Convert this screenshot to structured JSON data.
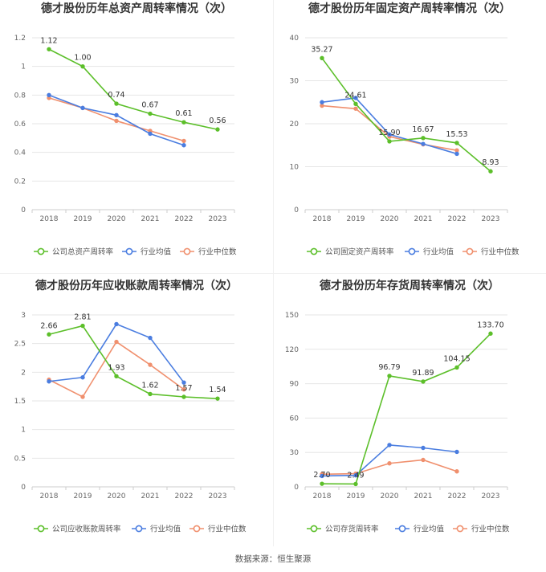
{
  "source": "数据来源：恒生聚源",
  "colors": {
    "company": "#5cbf2a",
    "industry_avg": "#4a7de0",
    "industry_median": "#f0906e"
  },
  "chart_data": [
    {
      "type": "line",
      "title": "德才股份历年总资产周转率情况（次）",
      "categories": [
        "2018",
        "2019",
        "2020",
        "2021",
        "2022",
        "2023"
      ],
      "ylim": [
        0,
        1.2
      ],
      "yticks": [
        0,
        0.2,
        0.4,
        0.6,
        0.8,
        1,
        1.2
      ],
      "ytick_labels": [
        "0",
        "0.2",
        "0.4",
        "0.6",
        "0.8",
        "1",
        "1.2"
      ],
      "label_above": [
        true,
        true,
        true,
        true,
        true,
        true
      ],
      "legend": "bottom",
      "series": [
        {
          "name": "公司总资产周转率",
          "values": [
            1.12,
            1.0,
            0.74,
            0.67,
            0.61,
            0.56
          ],
          "labels": [
            "1.12",
            "1.00",
            "0.74",
            "0.67",
            "0.61",
            "0.56"
          ]
        },
        {
          "name": "行业均值",
          "values": [
            0.8,
            0.71,
            0.66,
            0.53,
            0.45,
            null
          ]
        },
        {
          "name": "行业中位数",
          "values": [
            0.78,
            0.71,
            0.62,
            0.55,
            0.48,
            null
          ]
        }
      ]
    },
    {
      "type": "line",
      "title": "德才股份历年固定资产周转率情况（次）",
      "categories": [
        "2018",
        "2019",
        "2020",
        "2021",
        "2022",
        "2023"
      ],
      "ylim": [
        0,
        40
      ],
      "yticks": [
        0,
        10,
        20,
        30,
        40
      ],
      "ytick_labels": [
        "0",
        "10",
        "20",
        "30",
        "40"
      ],
      "label_above": [
        true,
        true,
        true,
        true,
        true,
        true
      ],
      "legend": "bottom",
      "series": [
        {
          "name": "公司固定资产周转率",
          "values": [
            35.27,
            24.61,
            15.9,
            16.67,
            15.53,
            8.93
          ],
          "labels": [
            "35.27",
            "24.61",
            "15.90",
            "16.67",
            "15.53",
            "8.93"
          ]
        },
        {
          "name": "行业均值",
          "values": [
            25.0,
            26.0,
            17.5,
            15.3,
            13.0,
            null
          ]
        },
        {
          "name": "行业中位数",
          "values": [
            24.2,
            23.5,
            17.0,
            15.2,
            13.8,
            null
          ]
        }
      ]
    },
    {
      "type": "line",
      "title": "德才股份历年应收账款周转率情况（次）",
      "categories": [
        "2018",
        "2019",
        "2020",
        "2021",
        "2022",
        "2023"
      ],
      "ylim": [
        0,
        3
      ],
      "yticks": [
        0,
        0.5,
        1,
        1.5,
        2,
        2.5,
        3
      ],
      "ytick_labels": [
        "0",
        "0.5",
        "1",
        "1.5",
        "2",
        "2.5",
        "3"
      ],
      "label_above": [
        true,
        true,
        true,
        true,
        true,
        true
      ],
      "legend": "bottom",
      "series": [
        {
          "name": "公司应收账款周转率",
          "values": [
            2.66,
            2.81,
            1.93,
            1.62,
            1.57,
            1.54
          ],
          "labels": [
            "2.66",
            "2.81",
            "1.93",
            "1.62",
            "1.57",
            "1.54"
          ]
        },
        {
          "name": "行业均值",
          "values": [
            1.84,
            1.91,
            2.84,
            2.6,
            1.82,
            null
          ]
        },
        {
          "name": "行业中位数",
          "values": [
            1.87,
            1.57,
            2.53,
            2.13,
            1.7,
            null
          ]
        }
      ]
    },
    {
      "type": "line",
      "title": "德才股份历年存货周转率情况（次）",
      "categories": [
        "2018",
        "2019",
        "2020",
        "2021",
        "2022",
        "2023"
      ],
      "ylim": [
        0,
        150
      ],
      "yticks": [
        0,
        30,
        60,
        90,
        120,
        150
      ],
      "ytick_labels": [
        "0",
        "30",
        "60",
        "90",
        "120",
        "150"
      ],
      "label_above": [
        true,
        true,
        true,
        true,
        true,
        true
      ],
      "legend": "bottom",
      "series": [
        {
          "name": "公司存货周转率",
          "values": [
            2.7,
            2.49,
            96.79,
            91.89,
            104.15,
            133.7
          ],
          "labels": [
            "2.70",
            "2.49",
            "96.79",
            "91.89",
            "104.15",
            "133.70"
          ]
        },
        {
          "name": "行业均值",
          "values": [
            9.5,
            10.0,
            36.5,
            34.0,
            30.5,
            null
          ]
        },
        {
          "name": "行业中位数",
          "values": [
            11.0,
            11.5,
            20.5,
            23.5,
            13.5,
            null
          ]
        }
      ]
    }
  ]
}
